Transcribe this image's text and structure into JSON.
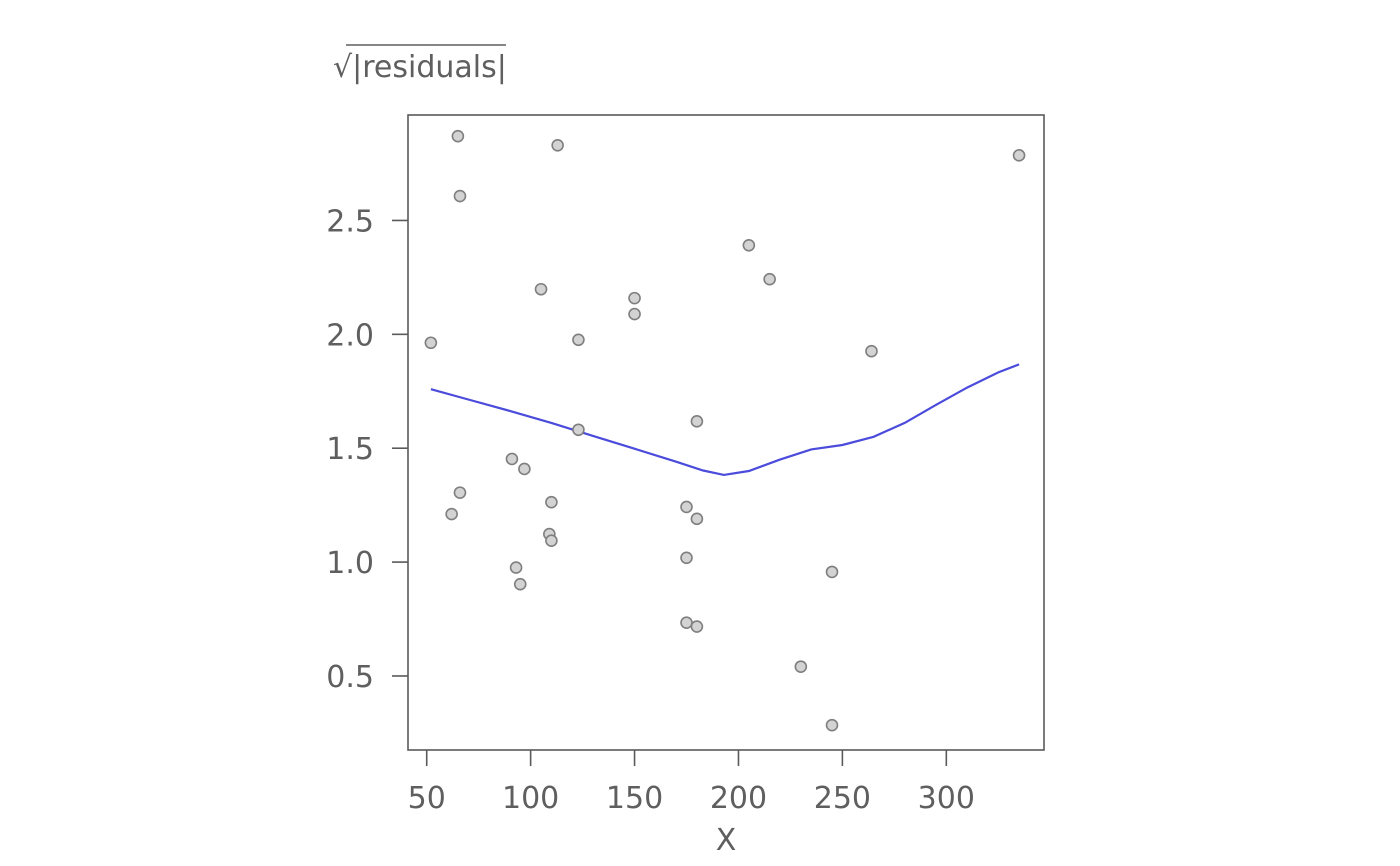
{
  "chart_data": {
    "type": "scatter",
    "ylabel_prefix": "√",
    "ylabel": "|residuals|",
    "xlabel": "X",
    "xlim": [
      41,
      347
    ],
    "ylim": [
      0.175,
      2.963
    ],
    "xticks": [
      50,
      100,
      150,
      200,
      250,
      300
    ],
    "xtick_labels": [
      "50",
      "100",
      "150",
      "200",
      "250",
      "300"
    ],
    "yticks": [
      0.5,
      1.0,
      1.5,
      2.0,
      2.5
    ],
    "ytick_labels": [
      "0.5",
      "1.0",
      "1.5",
      "2.0",
      "2.5"
    ],
    "grid": false,
    "points": [
      {
        "x": 52,
        "y": 1.963
      },
      {
        "x": 62,
        "y": 1.211
      },
      {
        "x": 65,
        "y": 2.87
      },
      {
        "x": 66,
        "y": 2.607
      },
      {
        "x": 66,
        "y": 1.305
      },
      {
        "x": 91,
        "y": 1.453
      },
      {
        "x": 93,
        "y": 0.976
      },
      {
        "x": 95,
        "y": 0.903
      },
      {
        "x": 97,
        "y": 1.409
      },
      {
        "x": 105,
        "y": 2.198
      },
      {
        "x": 109,
        "y": 1.123
      },
      {
        "x": 110,
        "y": 1.094
      },
      {
        "x": 110,
        "y": 1.263
      },
      {
        "x": 113,
        "y": 2.83
      },
      {
        "x": 123,
        "y": 1.976
      },
      {
        "x": 123,
        "y": 1.581
      },
      {
        "x": 150,
        "y": 2.159
      },
      {
        "x": 150,
        "y": 2.089
      },
      {
        "x": 175,
        "y": 1.242
      },
      {
        "x": 175,
        "y": 1.019
      },
      {
        "x": 175,
        "y": 0.734
      },
      {
        "x": 180,
        "y": 1.618
      },
      {
        "x": 180,
        "y": 1.19
      },
      {
        "x": 180,
        "y": 0.717
      },
      {
        "x": 205,
        "y": 2.391
      },
      {
        "x": 215,
        "y": 2.242
      },
      {
        "x": 230,
        "y": 0.541
      },
      {
        "x": 245,
        "y": 0.957
      },
      {
        "x": 245,
        "y": 0.284
      },
      {
        "x": 264,
        "y": 1.926
      },
      {
        "x": 335,
        "y": 2.786
      }
    ],
    "smooth_line": [
      {
        "x": 52,
        "y": 1.759
      },
      {
        "x": 70,
        "y": 1.714
      },
      {
        "x": 90,
        "y": 1.664
      },
      {
        "x": 110,
        "y": 1.611
      },
      {
        "x": 130,
        "y": 1.554
      },
      {
        "x": 150,
        "y": 1.498
      },
      {
        "x": 170,
        "y": 1.441
      },
      {
        "x": 183,
        "y": 1.402
      },
      {
        "x": 193,
        "y": 1.383
      },
      {
        "x": 205,
        "y": 1.4
      },
      {
        "x": 220,
        "y": 1.45
      },
      {
        "x": 235,
        "y": 1.495
      },
      {
        "x": 250,
        "y": 1.514
      },
      {
        "x": 265,
        "y": 1.55
      },
      {
        "x": 280,
        "y": 1.611
      },
      {
        "x": 295,
        "y": 1.69
      },
      {
        "x": 310,
        "y": 1.766
      },
      {
        "x": 325,
        "y": 1.833
      },
      {
        "x": 335,
        "y": 1.868
      }
    ],
    "colors": {
      "point_fill": "#d3d3d3",
      "point_stroke": "#7f7f7f",
      "smooth_line": "#4b4bdc",
      "axis": "#5a5a5a",
      "text": "#5f5f5f"
    }
  }
}
